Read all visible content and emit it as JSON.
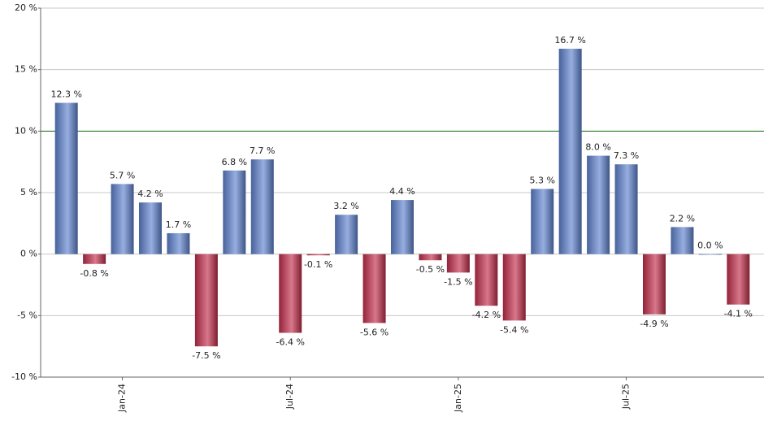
{
  "chart_data": {
    "type": "bar",
    "categories": [
      null,
      null,
      "Jan-24",
      null,
      null,
      null,
      null,
      null,
      "Jul-24",
      null,
      null,
      null,
      null,
      null,
      "Jan-25",
      null,
      null,
      null,
      null,
      null,
      "Jul-25",
      null,
      null,
      null,
      null
    ],
    "values": [
      12.3,
      -0.8,
      5.7,
      4.2,
      1.7,
      -7.5,
      6.8,
      7.7,
      -6.4,
      -0.1,
      3.2,
      -5.6,
      4.4,
      -0.5,
      -1.5,
      -4.2,
      -5.4,
      5.3,
      16.7,
      8.0,
      7.3,
      -4.9,
      2.2,
      0.0,
      -4.1
    ],
    "value_labels": [
      "12.3 %",
      "-0.8 %",
      "5.7 %",
      "4.2 %",
      "1.7 %",
      "-7.5 %",
      "6.8 %",
      "7.7 %",
      "-6.4 %",
      "-0.1 %",
      "3.2 %",
      "-5.6 %",
      "4.4 %",
      "-0.5 %",
      "-1.5 %",
      "-4.2 %",
      "-5.4 %",
      "5.3 %",
      "16.7 %",
      "8.0 %",
      "7.3 %",
      "-4.9 %",
      "2.2 %",
      "0.0 %",
      "-4.1 %"
    ],
    "positive_color": "#5f82d0",
    "negative_color": "#c42e4c",
    "reference_line": 10,
    "reference_color": "#1a7a1a",
    "ylim": [
      -10,
      20
    ],
    "yticks": [
      {
        "value": -10,
        "label": "-10 %"
      },
      {
        "value": -5,
        "label": "-5 %"
      },
      {
        "value": 0,
        "label": "0 %"
      },
      {
        "value": 5,
        "label": "5 %"
      },
      {
        "value": 10,
        "label": "10 %"
      },
      {
        "value": 15,
        "label": "15 %"
      },
      {
        "value": 20,
        "label": "20 %"
      }
    ],
    "grid": true
  }
}
